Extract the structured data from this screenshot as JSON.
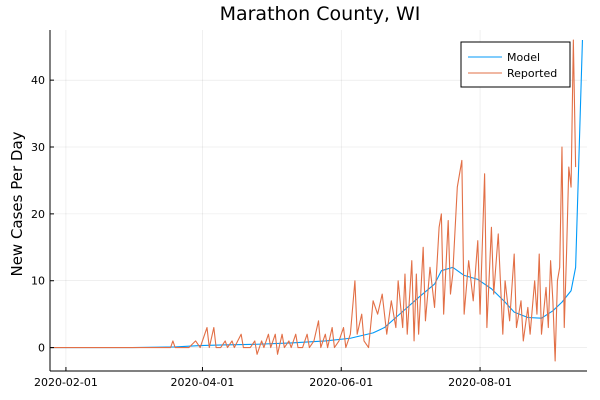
{
  "chart_data": {
    "type": "line",
    "title": "Marathon County, WI",
    "xlabel": "",
    "ylabel": "New Cases Per Day",
    "x_start": "2020-01-25",
    "x_end": "2020-09-17",
    "x_ticks": [
      "2020-02-01",
      "2020-04-01",
      "2020-06-01",
      "2020-08-01"
    ],
    "ylim": [
      -3.5,
      47.5
    ],
    "y_ticks": [
      0,
      10,
      20,
      30,
      40
    ],
    "grid": true,
    "legend_position": "top-right",
    "series": [
      {
        "name": "Model",
        "color": "#009af9",
        "points": [
          [
            "2020-01-25",
            0
          ],
          [
            "2020-03-01",
            0
          ],
          [
            "2020-03-20",
            0.1
          ],
          [
            "2020-03-31",
            0.3
          ],
          [
            "2020-04-10",
            0.4
          ],
          [
            "2020-04-25",
            0.5
          ],
          [
            "2020-05-10",
            0.7
          ],
          [
            "2020-05-25",
            1.0
          ],
          [
            "2020-06-05",
            1.4
          ],
          [
            "2020-06-15",
            2.2
          ],
          [
            "2020-06-20",
            3.0
          ],
          [
            "2020-06-25",
            4.5
          ],
          [
            "2020-06-30",
            6.0
          ],
          [
            "2020-07-05",
            7.5
          ],
          [
            "2020-07-12",
            9.5
          ],
          [
            "2020-07-15",
            11.5
          ],
          [
            "2020-07-20",
            12.0
          ],
          [
            "2020-07-25",
            10.8
          ],
          [
            "2020-07-31",
            10.2
          ],
          [
            "2020-08-06",
            8.8
          ],
          [
            "2020-08-12",
            6.8
          ],
          [
            "2020-08-16",
            5.3
          ],
          [
            "2020-08-22",
            4.5
          ],
          [
            "2020-08-28",
            4.4
          ],
          [
            "2020-09-02",
            5.5
          ],
          [
            "2020-09-06",
            6.8
          ],
          [
            "2020-09-10",
            8.5
          ],
          [
            "2020-09-12",
            12.0
          ],
          [
            "2020-09-15",
            46.0
          ]
        ]
      },
      {
        "name": "Reported",
        "color": "#e26f46",
        "points": [
          [
            "2020-01-25",
            0
          ],
          [
            "2020-03-18",
            0
          ],
          [
            "2020-03-19",
            1
          ],
          [
            "2020-03-20",
            0
          ],
          [
            "2020-03-26",
            0
          ],
          [
            "2020-03-29",
            1
          ],
          [
            "2020-03-31",
            0
          ],
          [
            "2020-04-02",
            2
          ],
          [
            "2020-04-03",
            3
          ],
          [
            "2020-04-04",
            0
          ],
          [
            "2020-04-06",
            3
          ],
          [
            "2020-04-07",
            0
          ],
          [
            "2020-04-09",
            0
          ],
          [
            "2020-04-11",
            1
          ],
          [
            "2020-04-12",
            0
          ],
          [
            "2020-04-14",
            1
          ],
          [
            "2020-04-15",
            0
          ],
          [
            "2020-04-18",
            2
          ],
          [
            "2020-04-19",
            0
          ],
          [
            "2020-04-22",
            0
          ],
          [
            "2020-04-24",
            1
          ],
          [
            "2020-04-25",
            -1
          ],
          [
            "2020-04-27",
            1
          ],
          [
            "2020-04-28",
            0
          ],
          [
            "2020-04-30",
            2
          ],
          [
            "2020-05-01",
            0
          ],
          [
            "2020-05-03",
            2
          ],
          [
            "2020-05-04",
            -1
          ],
          [
            "2020-05-06",
            2
          ],
          [
            "2020-05-07",
            0
          ],
          [
            "2020-05-09",
            1
          ],
          [
            "2020-05-10",
            0
          ],
          [
            "2020-05-12",
            2
          ],
          [
            "2020-05-13",
            0
          ],
          [
            "2020-05-15",
            0
          ],
          [
            "2020-05-17",
            2
          ],
          [
            "2020-05-18",
            0
          ],
          [
            "2020-05-20",
            1
          ],
          [
            "2020-05-22",
            4
          ],
          [
            "2020-05-23",
            0
          ],
          [
            "2020-05-25",
            2
          ],
          [
            "2020-05-26",
            0
          ],
          [
            "2020-05-28",
            3
          ],
          [
            "2020-05-29",
            0
          ],
          [
            "2020-05-31",
            1
          ],
          [
            "2020-06-02",
            3
          ],
          [
            "2020-06-03",
            0
          ],
          [
            "2020-06-05",
            2
          ],
          [
            "2020-06-07",
            10
          ],
          [
            "2020-06-08",
            2
          ],
          [
            "2020-06-10",
            5
          ],
          [
            "2020-06-11",
            1
          ],
          [
            "2020-06-13",
            0
          ],
          [
            "2020-06-15",
            7
          ],
          [
            "2020-06-17",
            5
          ],
          [
            "2020-06-19",
            8
          ],
          [
            "2020-06-21",
            2
          ],
          [
            "2020-06-23",
            7
          ],
          [
            "2020-06-25",
            3
          ],
          [
            "2020-06-26",
            10
          ],
          [
            "2020-06-28",
            3
          ],
          [
            "2020-06-29",
            11
          ],
          [
            "2020-06-30",
            2
          ],
          [
            "2020-07-02",
            13
          ],
          [
            "2020-07-03",
            1
          ],
          [
            "2020-07-04",
            11
          ],
          [
            "2020-07-05",
            2
          ],
          [
            "2020-07-07",
            15
          ],
          [
            "2020-07-08",
            4
          ],
          [
            "2020-07-10",
            12
          ],
          [
            "2020-07-12",
            6
          ],
          [
            "2020-07-14",
            18
          ],
          [
            "2020-07-15",
            20
          ],
          [
            "2020-07-16",
            5
          ],
          [
            "2020-07-18",
            19
          ],
          [
            "2020-07-19",
            8
          ],
          [
            "2020-07-20",
            11
          ],
          [
            "2020-07-22",
            24
          ],
          [
            "2020-07-24",
            28
          ],
          [
            "2020-07-25",
            5
          ],
          [
            "2020-07-27",
            13
          ],
          [
            "2020-07-29",
            7
          ],
          [
            "2020-07-31",
            16
          ],
          [
            "2020-08-01",
            5
          ],
          [
            "2020-08-03",
            26
          ],
          [
            "2020-08-04",
            3
          ],
          [
            "2020-08-06",
            18
          ],
          [
            "2020-08-07",
            8
          ],
          [
            "2020-08-09",
            17
          ],
          [
            "2020-08-11",
            2
          ],
          [
            "2020-08-12",
            10
          ],
          [
            "2020-08-14",
            4
          ],
          [
            "2020-08-16",
            14
          ],
          [
            "2020-08-17",
            3
          ],
          [
            "2020-08-19",
            7
          ],
          [
            "2020-08-20",
            1
          ],
          [
            "2020-08-22",
            6
          ],
          [
            "2020-08-23",
            2
          ],
          [
            "2020-08-25",
            10
          ],
          [
            "2020-08-26",
            5
          ],
          [
            "2020-08-27",
            14
          ],
          [
            "2020-08-28",
            2
          ],
          [
            "2020-08-30",
            9
          ],
          [
            "2020-08-31",
            3
          ],
          [
            "2020-09-01",
            13
          ],
          [
            "2020-09-02",
            7
          ],
          [
            "2020-09-03",
            -2
          ],
          [
            "2020-09-04",
            10
          ],
          [
            "2020-09-05",
            12
          ],
          [
            "2020-09-06",
            30
          ],
          [
            "2020-09-07",
            3
          ],
          [
            "2020-09-08",
            14
          ],
          [
            "2020-09-09",
            27
          ],
          [
            "2020-09-10",
            24
          ],
          [
            "2020-09-11",
            46
          ],
          [
            "2020-09-12",
            27
          ]
        ]
      }
    ]
  }
}
